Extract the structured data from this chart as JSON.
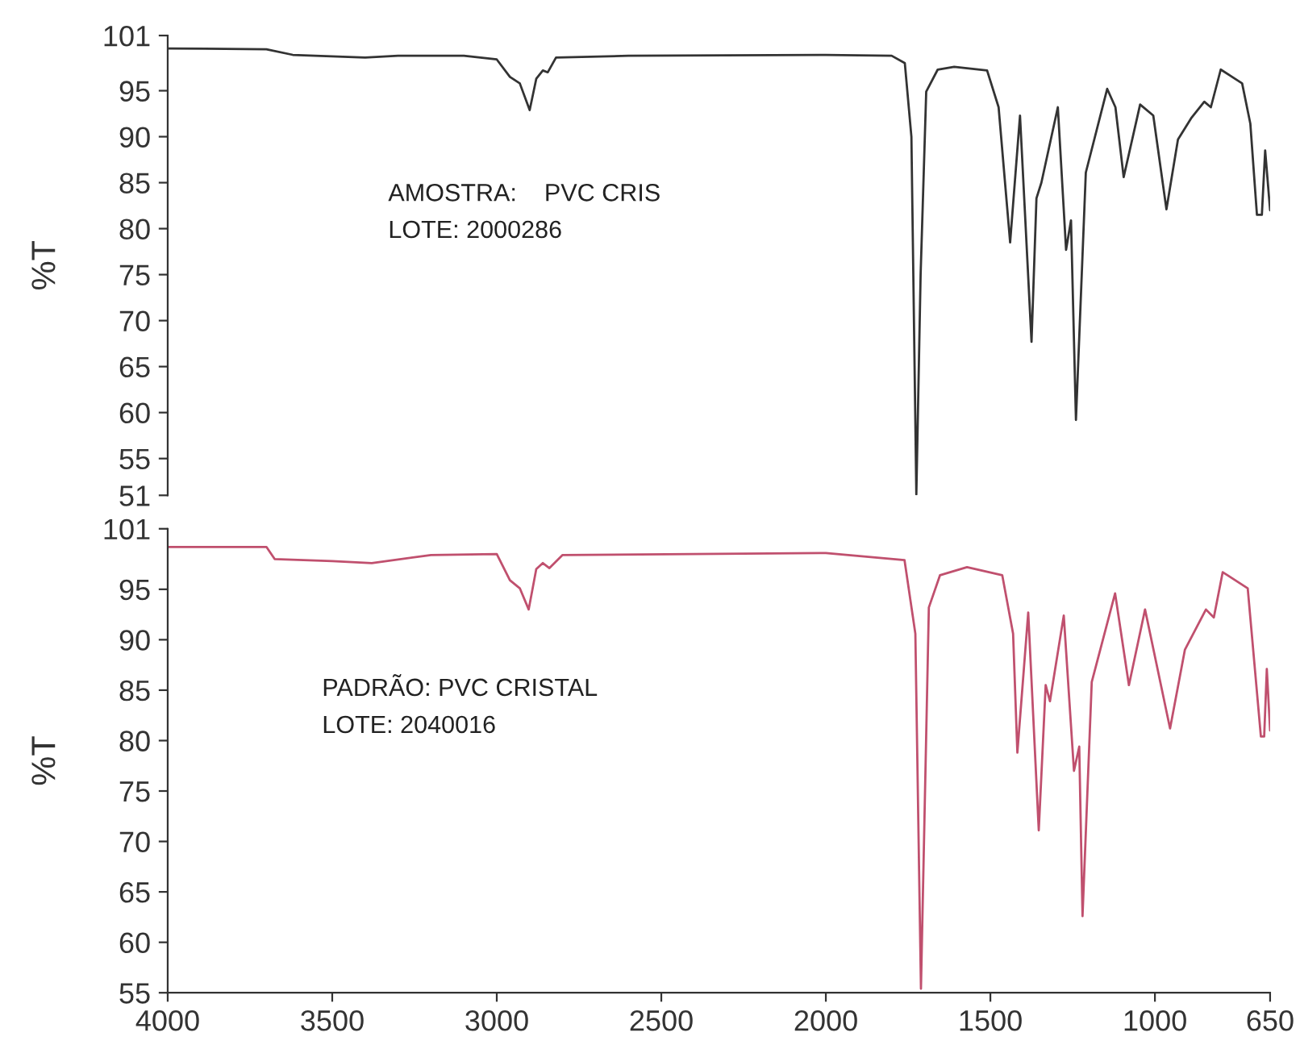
{
  "chart_data": [
    {
      "type": "line",
      "ylabel": "%T",
      "annotations": [
        "AMOSTRA:    PVC CRIS",
        "LOTE: 2000286"
      ],
      "xlim": [
        4000,
        650
      ],
      "ylim": [
        51,
        101
      ],
      "yticks": [
        51,
        55,
        60,
        65,
        70,
        75,
        80,
        85,
        90,
        95,
        101
      ],
      "tick_labels": "y",
      "grid": false,
      "series": [
        {
          "color": "#333333",
          "x": [
            4000,
            3700,
            3620,
            3400,
            3300,
            3100,
            3000,
            2960,
            2930,
            2900,
            2880,
            2860,
            2845,
            2820,
            2600,
            2000,
            1800,
            1760,
            1740,
            1725,
            1712,
            1695,
            1660,
            1610,
            1510,
            1475,
            1440,
            1410,
            1375,
            1360,
            1345,
            1295,
            1270,
            1255,
            1240,
            1210,
            1145,
            1120,
            1095,
            1045,
            1005,
            965,
            930,
            890,
            850,
            830,
            800,
            735,
            710,
            690,
            675,
            665,
            650
          ],
          "values": [
            99.6,
            99.5,
            98.9,
            98.6,
            98.8,
            98.8,
            98.4,
            96.5,
            95.8,
            92.9,
            96.3,
            97.2,
            97.0,
            98.6,
            98.8,
            98.9,
            98.8,
            98.0,
            90.0,
            51.1,
            75.0,
            94.9,
            97.3,
            97.6,
            97.2,
            93.2,
            78.5,
            92.3,
            67.7,
            83.3,
            85.0,
            93.2,
            77.7,
            80.9,
            59.2,
            86.1,
            95.2,
            93.2,
            85.6,
            93.5,
            92.3,
            82.1,
            89.7,
            92.0,
            93.8,
            93.2,
            97.3,
            95.8,
            91.4,
            81.5,
            81.5,
            88.5,
            82.0
          ]
        }
      ]
    },
    {
      "type": "line",
      "ylabel": "%T",
      "annotations": [
        "PADRÃO: PVC CRISTAL",
        "LOTE: 2040016"
      ],
      "xlim": [
        4000,
        650
      ],
      "ylim": [
        55,
        101
      ],
      "xticks": [
        4000,
        3500,
        3000,
        2500,
        2000,
        1500,
        1000,
        650
      ],
      "yticks": [
        55,
        60,
        65,
        70,
        75,
        80,
        85,
        90,
        95,
        101
      ],
      "grid": false,
      "series": [
        {
          "color": "#c0506e",
          "x": [
            4000,
            3700,
            3675,
            3500,
            3380,
            3200,
            3000,
            2960,
            2930,
            2903,
            2880,
            2860,
            2840,
            2800,
            2000,
            1761,
            1728,
            1711,
            1687,
            1653,
            1571,
            1464,
            1431,
            1418,
            1385,
            1353,
            1332,
            1319,
            1277,
            1246,
            1230,
            1220,
            1192,
            1121,
            1079,
            1030,
            954,
            909,
            845,
            821,
            794,
            718,
            678,
            668,
            660,
            650
          ],
          "values": [
            99.2,
            99.2,
            98.0,
            97.8,
            97.6,
            98.4,
            98.5,
            95.9,
            95.1,
            93.0,
            97.0,
            97.6,
            97.1,
            98.4,
            98.6,
            97.9,
            90.6,
            55.4,
            93.2,
            96.4,
            97.2,
            96.4,
            90.6,
            78.8,
            92.7,
            71.1,
            85.5,
            83.9,
            92.4,
            77.0,
            79.4,
            62.6,
            85.8,
            94.6,
            85.5,
            93.0,
            81.2,
            89.0,
            93.0,
            92.2,
            96.7,
            95.1,
            80.4,
            80.4,
            87.1,
            81.0
          ]
        }
      ]
    }
  ]
}
